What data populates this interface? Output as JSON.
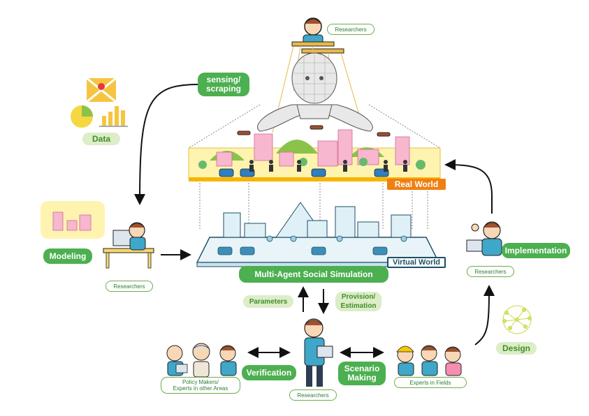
{
  "top_researchers": "Researchers",
  "data_label": "Data",
  "sensing_label": "sensing/\nscraping",
  "modeling_label": "Modeling",
  "modeling_researchers": "Researchers",
  "real_world_label": "Real World",
  "virtual_world_label": "Virtual World",
  "simulation_label": "Multi-Agent Social Simulation",
  "parameters_label": "Parameters",
  "provision_label": "Provision/\nEstimation",
  "implementation_label": "Implementation",
  "implementation_researchers": "Researchers",
  "design_label": "Design",
  "verification_label": "Verification",
  "scenario_label": "Scenario\nMaking",
  "policy_makers_label": "Policy Makers/\nExperts in other Areas",
  "center_researchers": "Researchers",
  "experts_label": "Experts in Fields",
  "colors": {
    "accent_green": "#4caf50",
    "light_green": "#dcedc8",
    "real_world_orange": "#f07f13",
    "virtual_blue": "#1c4f66",
    "city_yellow": "#fff3b0"
  }
}
